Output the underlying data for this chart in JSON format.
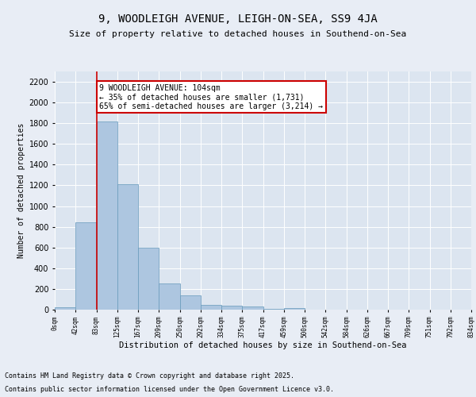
{
  "title": "9, WOODLEIGH AVENUE, LEIGH-ON-SEA, SS9 4JA",
  "subtitle": "Size of property relative to detached houses in Southend-on-Sea",
  "xlabel": "Distribution of detached houses by size in Southend-on-Sea",
  "ylabel": "Number of detached properties",
  "background_color": "#e8edf5",
  "bar_color": "#adc6e0",
  "bar_edge_color": "#6699bb",
  "vline_color": "#cc0000",
  "vline_x": 2.0,
  "annotation_text": "9 WOODLEIGH AVENUE: 104sqm\n← 35% of detached houses are smaller (1,731)\n65% of semi-detached houses are larger (3,214) →",
  "annotation_box_color": "#ffffff",
  "annotation_box_edge": "#cc0000",
  "bar_values": [
    20,
    845,
    1820,
    1210,
    600,
    255,
    140,
    45,
    40,
    27,
    5,
    15,
    0,
    0,
    0,
    0,
    0,
    0,
    0,
    0
  ],
  "tick_labels": [
    "0sqm",
    "42sqm",
    "83sqm",
    "125sqm",
    "167sqm",
    "209sqm",
    "250sqm",
    "292sqm",
    "334sqm",
    "375sqm",
    "417sqm",
    "459sqm",
    "500sqm",
    "542sqm",
    "584sqm",
    "626sqm",
    "667sqm",
    "709sqm",
    "751sqm",
    "792sqm",
    "834sqm"
  ],
  "ylim": [
    0,
    2300
  ],
  "yticks": [
    0,
    200,
    400,
    600,
    800,
    1000,
    1200,
    1400,
    1600,
    1800,
    2000,
    2200
  ],
  "footer_line1": "Contains HM Land Registry data © Crown copyright and database right 2025.",
  "footer_line2": "Contains public sector information licensed under the Open Government Licence v3.0.",
  "title_fontsize": 10,
  "subtitle_fontsize": 8,
  "grid_color": "#ffffff",
  "plot_bg_color": "#dce5f0"
}
